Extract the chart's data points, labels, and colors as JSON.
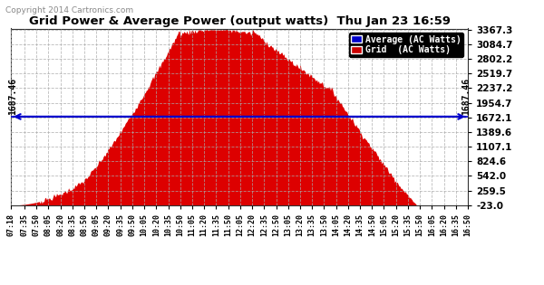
{
  "title": "Grid Power & Average Power (output watts)  Thu Jan 23 16:59",
  "copyright": "Copyright 2014 Cartronics.com",
  "average_value": 1687.46,
  "yticks": [
    3367.3,
    3084.7,
    2802.2,
    2519.7,
    2237.2,
    1954.7,
    1672.1,
    1389.6,
    1107.1,
    824.6,
    542.0,
    259.5,
    -23.0
  ],
  "ymax": 3390,
  "ymin": -23,
  "background_color": "#ffffff",
  "fill_color": "#dd0000",
  "avg_line_color": "#0000cc",
  "legend_avg_bg": "#0000cc",
  "legend_grid_bg": "#cc0000",
  "xtick_labels": [
    "07:18",
    "07:35",
    "07:50",
    "08:05",
    "08:20",
    "08:35",
    "08:50",
    "09:05",
    "09:20",
    "09:35",
    "09:50",
    "10:05",
    "10:20",
    "10:35",
    "10:50",
    "11:05",
    "11:20",
    "11:35",
    "11:50",
    "12:05",
    "12:20",
    "12:35",
    "12:50",
    "13:05",
    "13:20",
    "13:35",
    "13:50",
    "14:05",
    "14:20",
    "14:35",
    "14:50",
    "15:05",
    "15:20",
    "15:35",
    "15:50",
    "16:05",
    "16:20",
    "16:35",
    "16:50"
  ]
}
